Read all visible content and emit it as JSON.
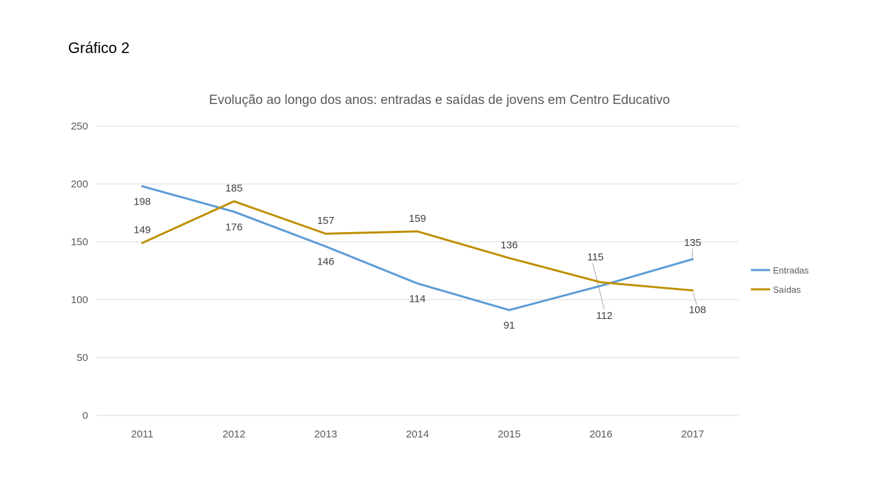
{
  "page": {
    "heading": "Gráfico 2"
  },
  "chart_data": {
    "type": "line",
    "title": "Evolução ao longo dos anos: entradas e saídas de jovens em Centro Educativo",
    "categories": [
      "2011",
      "2012",
      "2013",
      "2014",
      "2015",
      "2016",
      "2017"
    ],
    "series": [
      {
        "name": "Entradas",
        "color": "#5B9BD5",
        "values": [
          198,
          176,
          146,
          114,
          91,
          112,
          135
        ]
      },
      {
        "name": "Saídas",
        "color": "#BF8F00",
        "values": [
          149,
          185,
          157,
          159,
          136,
          115,
          108
        ]
      }
    ],
    "xlabel": "",
    "ylabel": "",
    "ylim": [
      0,
      250
    ],
    "y_ticks": [
      0,
      50,
      100,
      150,
      200,
      250
    ],
    "grid": true,
    "data_labels": true,
    "legend_position": "right"
  },
  "colors": {
    "gridline": "#D9D9D9",
    "axis_text": "#595959",
    "data_label_text": "#404040",
    "leader_line": "#A6A6A6",
    "title_text": "#595959",
    "heading_text": "#000000",
    "background": "#FFFFFF"
  }
}
